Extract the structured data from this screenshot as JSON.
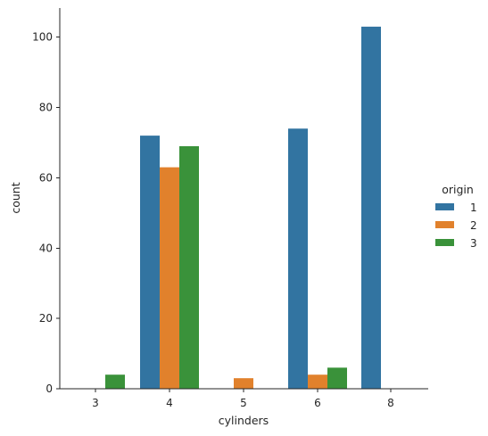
{
  "chart_data": {
    "type": "bar",
    "xlabel": "cylinders",
    "ylabel": "count",
    "categories": [
      "3",
      "4",
      "5",
      "6",
      "8"
    ],
    "yticks": [
      0,
      20,
      40,
      60,
      80,
      100
    ],
    "ylim": [
      0,
      108
    ],
    "legend": {
      "title": "origin",
      "placement": "right"
    },
    "series": [
      {
        "name": "1",
        "color": "#3274a1",
        "values": [
          0,
          72,
          0,
          74,
          103
        ]
      },
      {
        "name": "2",
        "color": "#e1812c",
        "values": [
          0,
          63,
          3,
          4,
          0
        ]
      },
      {
        "name": "3",
        "color": "#3a923a",
        "values": [
          4,
          69,
          0,
          6,
          0
        ]
      }
    ],
    "grid": false
  }
}
